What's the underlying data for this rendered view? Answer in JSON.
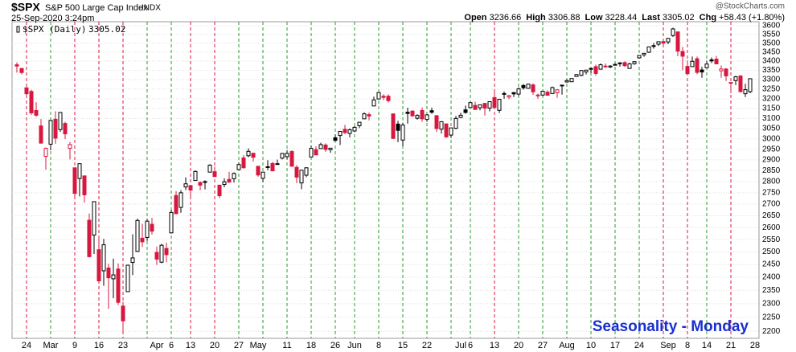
{
  "chart_data": {
    "type": "candlestick",
    "header": {
      "symbol": "$SPX",
      "name": "S&P 500 Large Cap Index",
      "exchange": "INDX",
      "datetime": "25-Sep-2020 3:24pm",
      "watermark": "@StockCharts.com",
      "stats": [
        {
          "label": "Open",
          "value": 3236.66
        },
        {
          "label": "High",
          "value": 3306.88
        },
        {
          "label": "Low",
          "value": 3228.44
        },
        {
          "label": "Last",
          "value": 3305.02
        },
        {
          "label": "Chg",
          "value": "+58.43 (+1.80%)"
        }
      ]
    },
    "annotation": "Seasonality - Monday",
    "log_scale": true,
    "grid": true,
    "up_color": "#000000",
    "down_color": "#d8173f",
    "week_up_color": "#2e9a2e",
    "week_down_color": "#d8173f",
    "annotation_color": "#1a2fd0",
    "ylim": [
      2175,
      3623
    ],
    "yticks": [
      2200,
      2250,
      2300,
      2350,
      2400,
      2450,
      2500,
      2550,
      2600,
      2650,
      2700,
      2750,
      2800,
      2850,
      2900,
      2950,
      3000,
      3050,
      3100,
      3150,
      3200,
      3250,
      3300,
      3350,
      3400,
      3450,
      3500,
      3550,
      3600
    ],
    "dates": [
      "2020-02-20",
      "2020-02-21",
      "2020-02-24",
      "2020-02-25",
      "2020-02-26",
      "2020-02-27",
      "2020-02-28",
      "2020-03-02",
      "2020-03-03",
      "2020-03-04",
      "2020-03-05",
      "2020-03-06",
      "2020-03-09",
      "2020-03-10",
      "2020-03-11",
      "2020-03-12",
      "2020-03-13",
      "2020-03-16",
      "2020-03-17",
      "2020-03-18",
      "2020-03-19",
      "2020-03-20",
      "2020-03-23",
      "2020-03-24",
      "2020-03-25",
      "2020-03-26",
      "2020-03-27",
      "2020-03-30",
      "2020-03-31",
      "2020-04-01",
      "2020-04-02",
      "2020-04-03",
      "2020-04-06",
      "2020-04-07",
      "2020-04-08",
      "2020-04-09",
      "2020-04-13",
      "2020-04-14",
      "2020-04-15",
      "2020-04-16",
      "2020-04-17",
      "2020-04-20",
      "2020-04-21",
      "2020-04-22",
      "2020-04-23",
      "2020-04-24",
      "2020-04-27",
      "2020-04-28",
      "2020-04-29",
      "2020-04-30",
      "2020-05-01",
      "2020-05-04",
      "2020-05-05",
      "2020-05-06",
      "2020-05-07",
      "2020-05-08",
      "2020-05-11",
      "2020-05-12",
      "2020-05-13",
      "2020-05-14",
      "2020-05-15",
      "2020-05-18",
      "2020-05-19",
      "2020-05-20",
      "2020-05-21",
      "2020-05-22",
      "2020-05-26",
      "2020-05-27",
      "2020-05-28",
      "2020-05-29",
      "2020-06-01",
      "2020-06-02",
      "2020-06-03",
      "2020-06-04",
      "2020-06-05",
      "2020-06-08",
      "2020-06-09",
      "2020-06-10",
      "2020-06-11",
      "2020-06-12",
      "2020-06-15",
      "2020-06-16",
      "2020-06-17",
      "2020-06-18",
      "2020-06-19",
      "2020-06-22",
      "2020-06-23",
      "2020-06-24",
      "2020-06-25",
      "2020-06-26",
      "2020-06-29",
      "2020-06-30",
      "2020-07-01",
      "2020-07-02",
      "2020-07-06",
      "2020-07-07",
      "2020-07-08",
      "2020-07-09",
      "2020-07-10",
      "2020-07-13",
      "2020-07-14",
      "2020-07-15",
      "2020-07-16",
      "2020-07-17",
      "2020-07-20",
      "2020-07-21",
      "2020-07-22",
      "2020-07-23",
      "2020-07-24",
      "2020-07-27",
      "2020-07-28",
      "2020-07-29",
      "2020-07-30",
      "2020-07-31",
      "2020-08-03",
      "2020-08-04",
      "2020-08-05",
      "2020-08-06",
      "2020-08-07",
      "2020-08-10",
      "2020-08-11",
      "2020-08-12",
      "2020-08-13",
      "2020-08-14",
      "2020-08-17",
      "2020-08-18",
      "2020-08-19",
      "2020-08-20",
      "2020-08-21",
      "2020-08-24",
      "2020-08-25",
      "2020-08-26",
      "2020-08-27",
      "2020-08-28",
      "2020-08-31",
      "2020-09-01",
      "2020-09-02",
      "2020-09-03",
      "2020-09-04",
      "2020-09-08",
      "2020-09-09",
      "2020-09-10",
      "2020-09-11",
      "2020-09-14",
      "2020-09-15",
      "2020-09-16",
      "2020-09-17",
      "2020-09-18",
      "2020-09-21",
      "2020-09-22",
      "2020-09-23",
      "2020-09-24",
      "2020-09-25",
      "2020-09-28"
    ],
    "categories": [
      null,
      null,
      "24",
      null,
      null,
      null,
      null,
      "Mar",
      null,
      null,
      null,
      null,
      "9",
      null,
      null,
      null,
      null,
      "16",
      null,
      null,
      null,
      null,
      "23",
      null,
      null,
      null,
      null,
      null,
      null,
      "Apr",
      null,
      null,
      "6",
      null,
      null,
      null,
      "13",
      null,
      null,
      null,
      null,
      "20",
      null,
      null,
      null,
      null,
      "27",
      null,
      null,
      null,
      "May",
      null,
      null,
      null,
      null,
      null,
      "11",
      null,
      null,
      null,
      null,
      "18",
      null,
      null,
      null,
      null,
      "26",
      null,
      null,
      null,
      "Jun",
      null,
      null,
      null,
      null,
      "8",
      null,
      null,
      null,
      null,
      "15",
      null,
      null,
      null,
      null,
      "22",
      null,
      null,
      null,
      null,
      null,
      null,
      "Jul",
      null,
      "6",
      null,
      null,
      null,
      null,
      "13",
      null,
      null,
      null,
      null,
      "20",
      null,
      null,
      null,
      null,
      "27",
      null,
      null,
      null,
      null,
      "Aug",
      null,
      null,
      null,
      null,
      "10",
      null,
      null,
      null,
      null,
      "17",
      null,
      null,
      null,
      null,
      "24",
      null,
      null,
      null,
      null,
      null,
      "Sep",
      null,
      null,
      null,
      "8",
      null,
      null,
      null,
      "14",
      null,
      null,
      null,
      null,
      "21",
      null,
      null,
      null,
      null,
      "28"
    ],
    "series": [
      {
        "name": "$SPX (Daily)",
        "open": [
          3380,
          3360,
          3257,
          3238,
          3140,
          3063,
          2916,
          2974,
          3096,
          3045,
          3075,
          2954,
          2863,
          2814,
          2826,
          2631,
          2569,
          2509,
          2425,
          2436,
          2394,
          2432,
          2291,
          2345,
          2458,
          2502,
          2556,
          2559,
          2614,
          2498,
          2459,
          2514,
          2578,
          2738,
          2686,
          2776,
          2782,
          2805,
          2796,
          2799,
          2843,
          2845,
          2784,
          2787,
          2810,
          2813,
          2855,
          2909,
          2919,
          2931,
          2870,
          2815,
          2868,
          2883,
          2879,
          2908,
          2915,
          2939,
          2865,
          2794,
          2829,
          2913,
          2948,
          2953,
          2970,
          2948,
          3005,
          3016,
          3046,
          3026,
          3038,
          3064,
          3098,
          3119,
          3163,
          3199,
          3213,
          3213,
          3123,
          3072,
          2994,
          3131,
          3137,
          3101,
          3140,
          3095,
          3139,
          3114,
          3047,
          3073,
          3018,
          3051,
          3105,
          3143,
          3155,
          3166,
          3154,
          3176,
          3152,
          3206,
          3141,
          3225,
          3209,
          3232,
          3224,
          3269,
          3254,
          3272,
          3219,
          3219,
          3234,
          3227,
          3231,
          3270,
          3288,
          3289,
          3317,
          3323,
          3341,
          3356,
          3370,
          3356,
          3373,
          3368,
          3380,
          3387,
          3392,
          3360,
          3386,
          3418,
          3435,
          3449,
          3486,
          3494,
          3509,
          3507,
          3543,
          3564,
          3453,
          3371,
          3370,
          3413,
          3352,
          3364,
          3407,
          3411,
          3347,
          3357,
          3285,
          3295,
          3320,
          3226,
          3236.66,
          null
        ],
        "high": [
          3393,
          3360,
          3259,
          3247,
          3182,
          3097,
          2959,
          3090,
          3136,
          3130,
          3083,
          2985,
          2863,
          2882,
          2826,
          2660,
          2711,
          2563,
          2553,
          2453,
          2473,
          2454,
          2307,
          2449,
          2572,
          2638,
          2616,
          2637,
          2641,
          2522,
          2533,
          2538,
          2676,
          2757,
          2761,
          2819,
          2783,
          2851,
          2801,
          2806,
          2880,
          2868,
          2785,
          2815,
          2844,
          2842,
          2887,
          2922,
          2954,
          2931,
          2870,
          2844,
          2898,
          2891,
          2901,
          2932,
          2945,
          2945,
          2875,
          2852,
          2865,
          2968,
          2964,
          2981,
          2978,
          2956,
          3021,
          3036,
          3068,
          3050,
          3062,
          3081,
          3131,
          3129,
          3211,
          3233,
          3223,
          3223,
          3123,
          3088,
          3079,
          3154,
          3141,
          3121,
          3155,
          3121,
          3154,
          3115,
          3084,
          3073,
          3054,
          3112,
          3128,
          3165,
          3182,
          3185,
          3167,
          3179,
          3187,
          3235,
          3200,
          3238,
          3220,
          3234,
          3259,
          3277,
          3279,
          3280,
          3227,
          3241,
          3244,
          3264,
          3250,
          3272,
          3302,
          3306,
          3330,
          3351,
          3353,
          3364,
          3381,
          3387,
          3387,
          3378,
          3388,
          3395,
          3399,
          3391,
          3399,
          3432,
          3444,
          3481,
          3501,
          3510,
          3514,
          3528,
          3588,
          3564,
          3479,
          3404,
          3425,
          3425,
          3369,
          3403,
          3420,
          3429,
          3376,
          3362,
          3285,
          3320,
          3323,
          3278,
          3306.88,
          null
        ],
        "low": [
          3338,
          3328,
          3214,
          3118,
          3108,
          2977,
          2855,
          2945,
          2976,
          3034,
          2999,
          2902,
          2734,
          2734,
          2707,
          2478,
          2492,
          2380,
          2367,
          2281,
          2320,
          2295,
          2192,
          2345,
          2408,
          2500,
          2520,
          2545,
          2571,
          2448,
          2455,
          2459,
          2575,
          2657,
          2663,
          2762,
          2721,
          2805,
          2761,
          2765,
          2842,
          2820,
          2727,
          2775,
          2794,
          2796,
          2853,
          2860,
          2912,
          2892,
          2822,
          2798,
          2852,
          2847,
          2877,
          2902,
          2903,
          2869,
          2793,
          2766,
          2820,
          2913,
          2922,
          2953,
          2938,
          2933,
          2988,
          2970,
          3023,
          3007,
          3032,
          3052,
          3098,
          3090,
          3163,
          3196,
          3193,
          3181,
          2999,
          2984,
          2965,
          3074,
          3108,
          3094,
          3083,
          3083,
          3123,
          3033,
          3025,
          3005,
          3004,
          3047,
          3101,
          3124,
          3155,
          3146,
          3141,
          3115,
          3136,
          3149,
          3127,
          3200,
          3198,
          3209,
          3215,
          3247,
          3252,
          3220,
          3200,
          3215,
          3216,
          3227,
          3205,
          3221,
          3284,
          3287,
          3317,
          3318,
          3328,
          3335,
          3322,
          3356,
          3363,
          3362,
          3379,
          3370,
          3369,
          3360,
          3380,
          3413,
          3424,
          3445,
          3469,
          3484,
          3494,
          3494,
          3535,
          3427,
          3350,
          3330,
          3370,
          3329,
          3310,
          3364,
          3389,
          3385,
          3310,
          3293,
          3229,
          3271,
          3232,
          3209,
          3228.44,
          null
        ],
        "close": [
          3373,
          3338,
          3226,
          3128,
          3116,
          2979,
          2954,
          3090,
          3003,
          3130,
          3024,
          2972,
          2747,
          2882,
          2741,
          2481,
          2711,
          2386,
          2529,
          2398,
          2409,
          2305,
          2237,
          2447,
          2476,
          2630,
          2541,
          2627,
          2585,
          2471,
          2527,
          2489,
          2664,
          2659,
          2750,
          2790,
          2762,
          2846,
          2784,
          2800,
          2875,
          2823,
          2737,
          2799,
          2798,
          2837,
          2878,
          2863,
          2940,
          2912,
          2830,
          2843,
          2868,
          2849,
          2882,
          2930,
          2930,
          2870,
          2820,
          2852,
          2863,
          2954,
          2923,
          2972,
          2949,
          2955,
          2992,
          3036,
          3030,
          3044,
          3056,
          3081,
          3123,
          3112,
          3194,
          3232,
          3207,
          3190,
          3002,
          3041,
          3067,
          3125,
          3113,
          3115,
          3098,
          3118,
          3131,
          3050,
          3084,
          3009,
          3053,
          3100,
          3116,
          3130,
          3180,
          3145,
          3169,
          3152,
          3185,
          3155,
          3197,
          3227,
          3216,
          3225,
          3251,
          3257,
          3276,
          3236,
          3216,
          3239,
          3218,
          3258,
          3246,
          3271,
          3295,
          3306,
          3327,
          3349,
          3351,
          3360,
          3333,
          3380,
          3373,
          3373,
          3382,
          3390,
          3375,
          3385,
          3397,
          3431,
          3443,
          3479,
          3484,
          3508,
          3500,
          3527,
          3581,
          3455,
          3427,
          3332,
          3399,
          3339,
          3341,
          3384,
          3401,
          3385,
          3357,
          3320,
          3281,
          3315,
          3237,
          3247,
          3305.02,
          null
        ]
      }
    ]
  }
}
